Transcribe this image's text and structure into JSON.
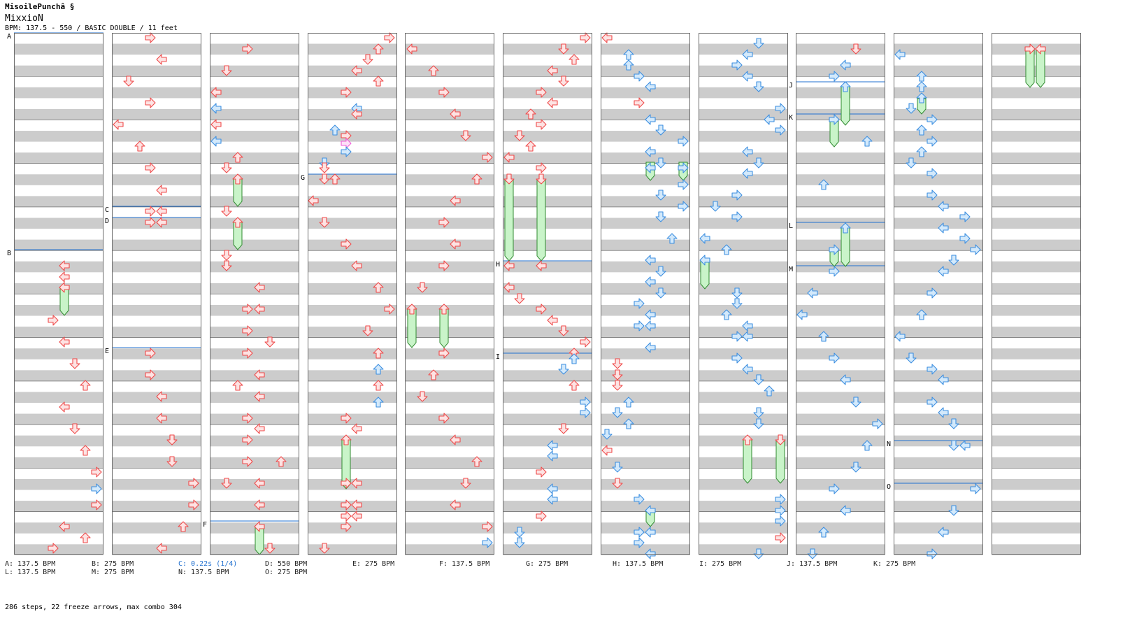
{
  "header": {
    "title": "MisoilePunchâ §",
    "artist": "MixxioN",
    "info": "BPM: 137.5 - 550 / BASIC DOUBLE / 11 feet"
  },
  "colors": {
    "red_arrow": "#ef4a4a",
    "red_fill": "#fde3e3",
    "blue_arrow": "#3d8fe0",
    "blue_fill": "#d3e9fb",
    "pink_arrow": "#f05ad8",
    "freeze_fill": "#c9f4c9",
    "freeze_stroke": "#2f8a2f",
    "stripe_gray": "#cccccc",
    "bpm_line": "#1f6fcf"
  },
  "section_marks": [
    "A",
    "B",
    "C",
    "D",
    "E",
    "F",
    "G",
    "H",
    "I",
    "J",
    "K",
    "L",
    "M",
    "N",
    "O"
  ],
  "bpm_legend": [
    {
      "text": "A: 137.5 BPM"
    },
    {
      "text": "B: 275 BPM"
    },
    {
      "text": "C: 0.22s (1/4)",
      "highlight": true
    },
    {
      "text": "D: 550 BPM"
    },
    {
      "text": "E: 275 BPM"
    },
    {
      "text": "F: 137.5 BPM"
    },
    {
      "text": "G: 275 BPM"
    },
    {
      "text": "H: 137.5 BPM"
    },
    {
      "text": "I: 275 BPM"
    },
    {
      "text": "J: 137.5 BPM"
    },
    {
      "text": "K: 275 BPM"
    },
    {
      "text": "L: 137.5 BPM"
    },
    {
      "text": "M: 275 BPM"
    },
    {
      "text": "N: 137.5 BPM"
    },
    {
      "text": "O: 275 BPM"
    }
  ],
  "summary": "286 steps, 22 freeze arrows, max combo 304"
}
